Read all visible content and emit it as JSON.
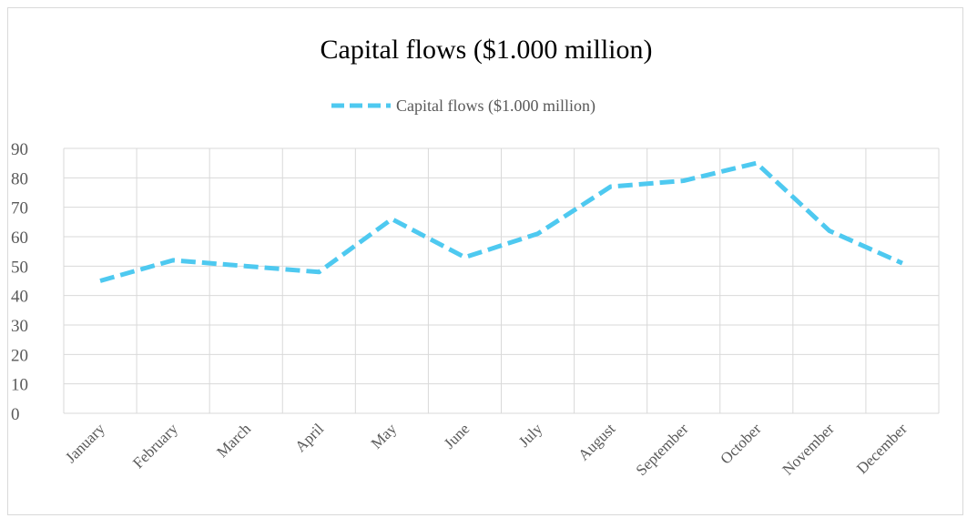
{
  "chart_data": {
    "type": "line",
    "title": "Capital flows ($1.000 million)",
    "xlabel": "",
    "ylabel": "",
    "categories": [
      "January",
      "February",
      "March",
      "April",
      "May",
      "June",
      "July",
      "August",
      "September",
      "October",
      "November",
      "December"
    ],
    "series": [
      {
        "name": "Capital flows ($1.000 million)",
        "values": [
          45,
          52,
          50,
          48,
          66,
          53,
          61,
          77,
          79,
          85,
          62,
          51
        ],
        "color": "#4ec9f0",
        "line_style": "dashed"
      }
    ],
    "ylim": [
      0,
      90
    ],
    "yticks": [
      0,
      10,
      20,
      30,
      40,
      50,
      60,
      70,
      80,
      90
    ],
    "grid": true,
    "gridline_color": "#d9d9d9",
    "legend_position": "top"
  }
}
